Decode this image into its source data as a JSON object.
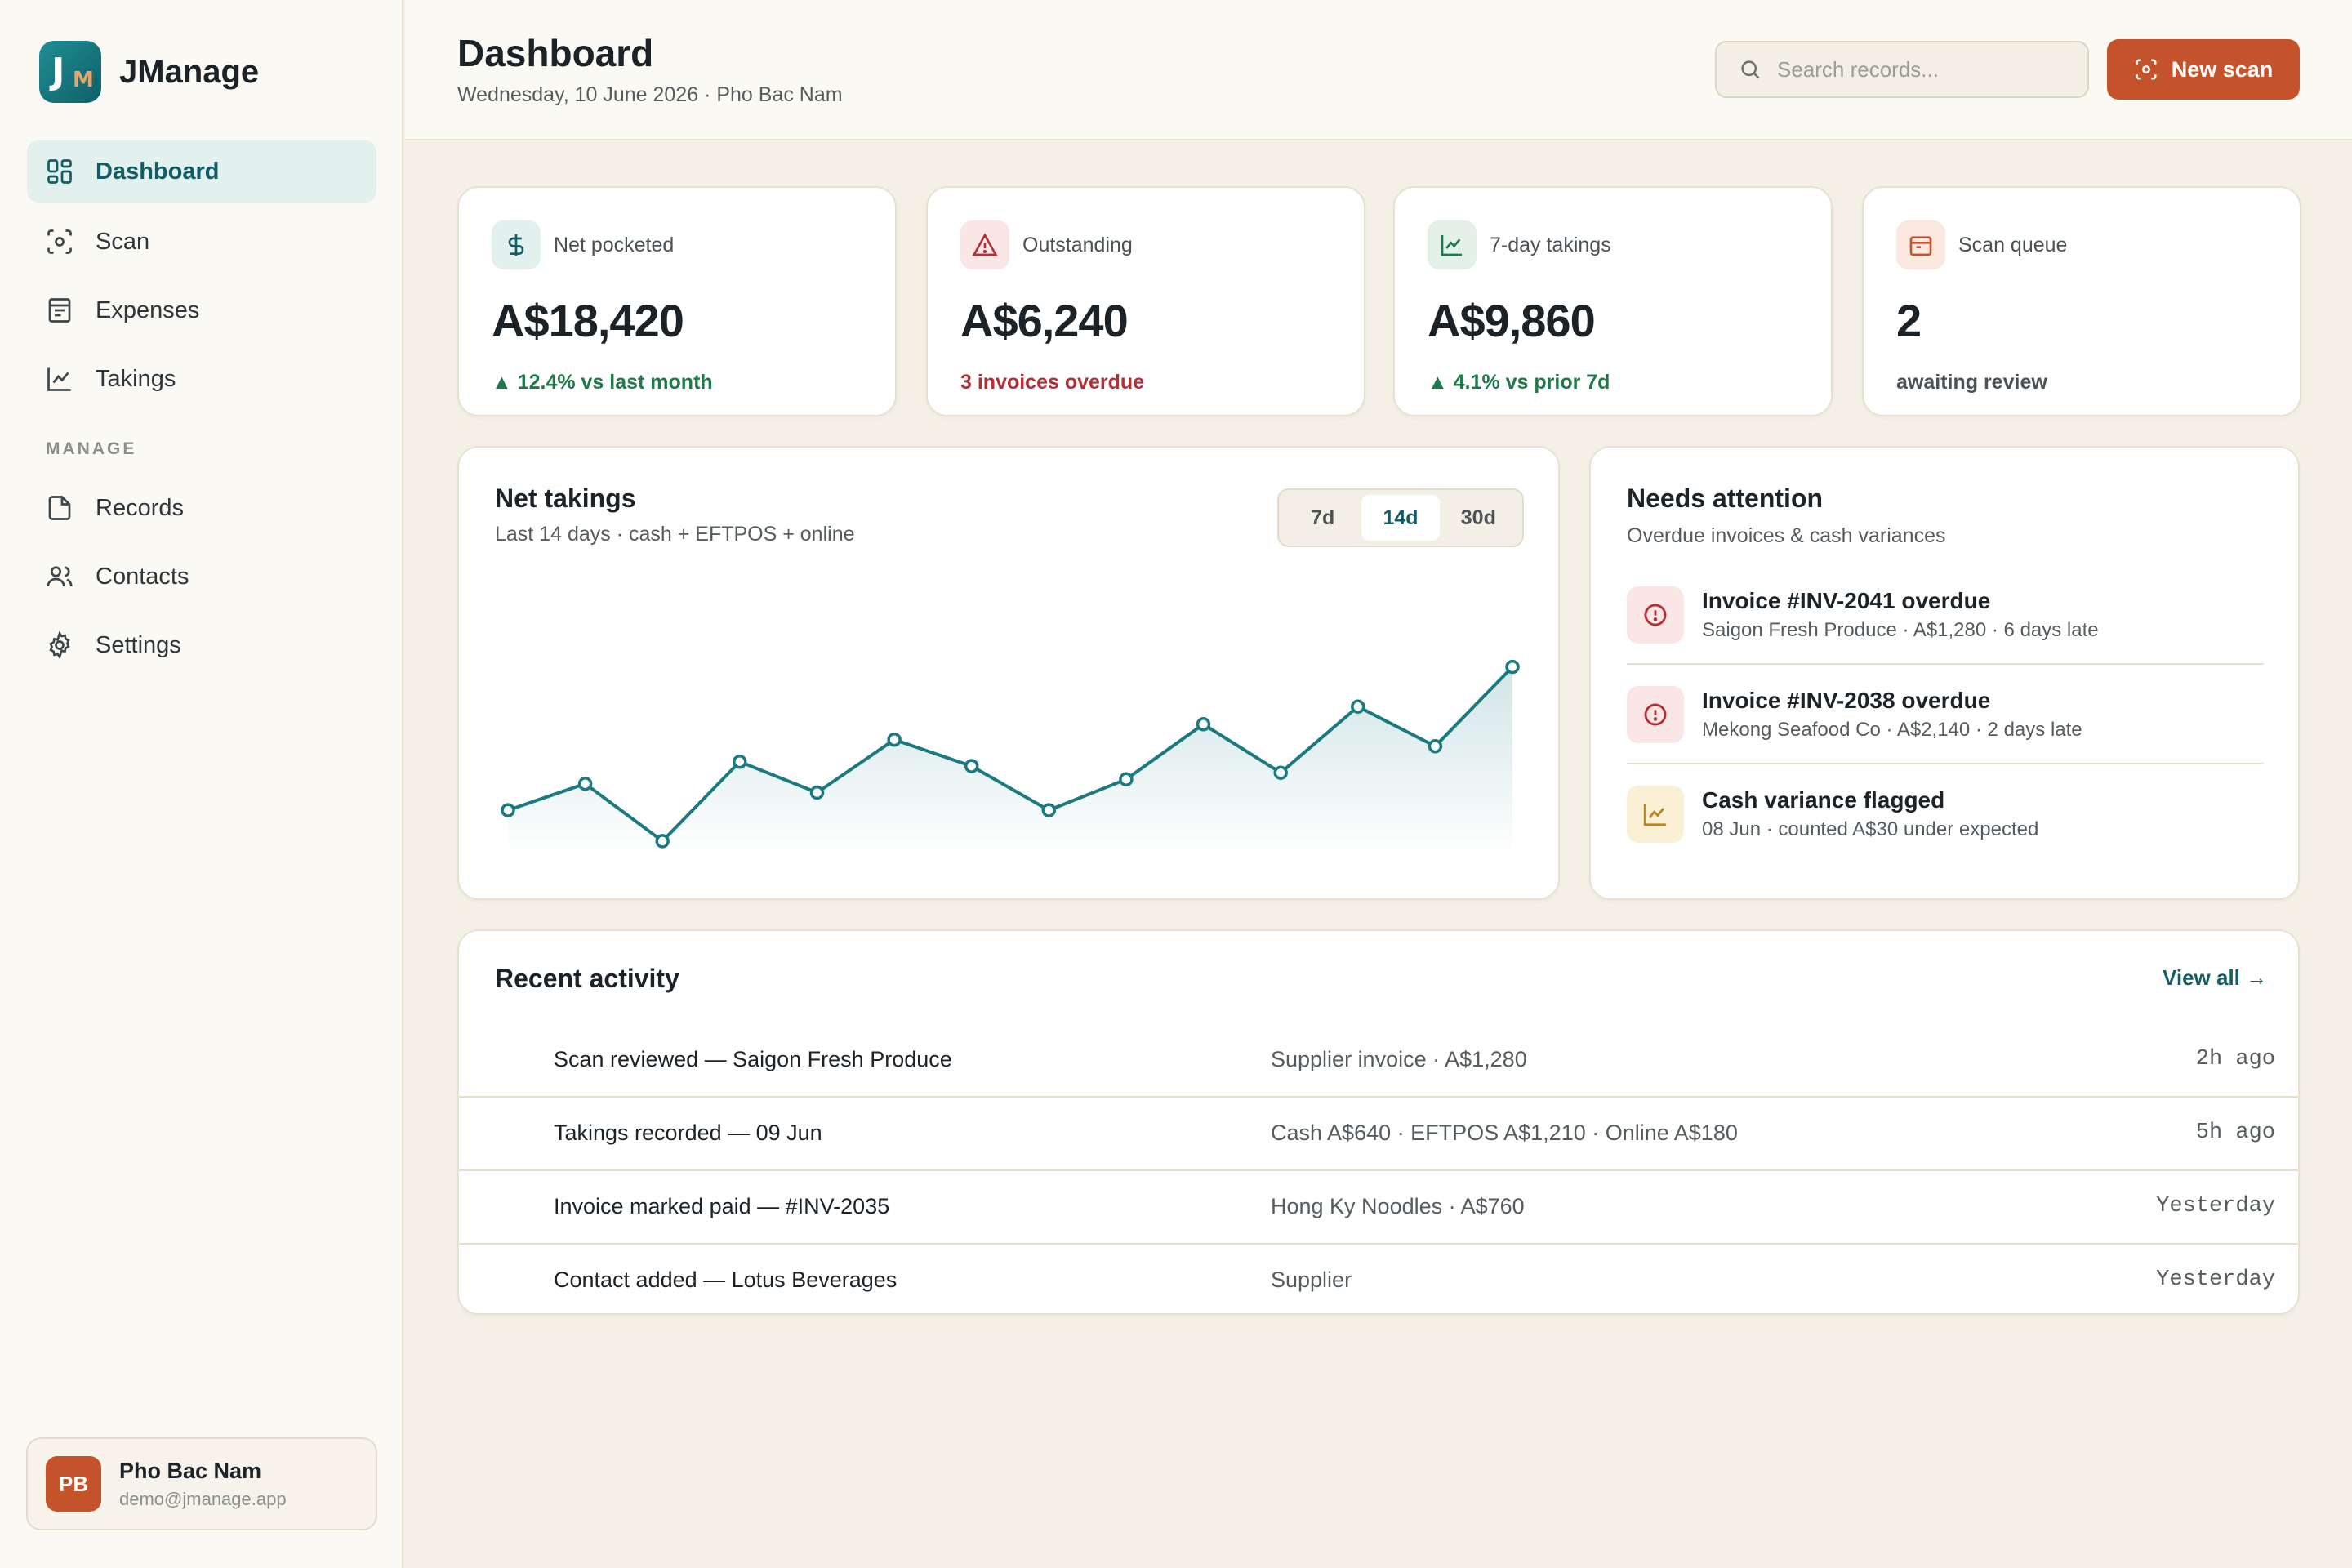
{
  "brand": {
    "logo_primary": "J",
    "logo_secondary": "M",
    "name": "JManage"
  },
  "sidebar": {
    "items": [
      {
        "label": "Dashboard",
        "icon": "grid-icon",
        "active": true
      },
      {
        "label": "Scan",
        "icon": "scan-icon"
      },
      {
        "label": "Expenses",
        "icon": "receipt-icon"
      },
      {
        "label": "Takings",
        "icon": "line-chart-icon"
      }
    ],
    "section_label": "MANAGE",
    "manage_items": [
      {
        "label": "Records",
        "icon": "file-icon"
      },
      {
        "label": "Contacts",
        "icon": "users-icon"
      },
      {
        "label": "Settings",
        "icon": "gear-icon"
      }
    ],
    "user": {
      "initials": "PB",
      "name": "Pho Bac Nam",
      "email": "demo@jmanage.app"
    }
  },
  "header": {
    "title": "Dashboard",
    "subtitle": "Wednesday, 10 June 2026 · Pho Bac Nam",
    "search_placeholder": "Search records...",
    "scan_button": "New scan"
  },
  "stats": [
    {
      "label": "Net pocketed",
      "value": "A$18,420",
      "note": "▲ 12.4% vs last month",
      "icon": "dollar-icon"
    },
    {
      "label": "Outstanding",
      "value": "A$6,240",
      "note": "3 invoices overdue",
      "icon": "warning-icon"
    },
    {
      "label": "7-day takings",
      "value": "A$9,860",
      "note": "▲ 4.1% vs prior 7d",
      "icon": "trend-icon"
    },
    {
      "label": "Scan queue",
      "value": "2",
      "note": "awaiting review",
      "icon": "calendar-icon"
    }
  ],
  "chart": {
    "title": "Net takings",
    "subtitle": "Last 14 days · cash + EFTPOS + online",
    "ranges": [
      "7d",
      "14d",
      "30d"
    ],
    "active_range": "14d"
  },
  "chart_data": {
    "type": "area",
    "x": [
      1,
      2,
      3,
      4,
      5,
      6,
      7,
      8,
      9,
      10,
      11,
      12,
      13,
      14
    ],
    "values": [
      0.17,
      0.29,
      0.03,
      0.39,
      0.25,
      0.49,
      0.37,
      0.17,
      0.31,
      0.56,
      0.34,
      0.64,
      0.46,
      0.82
    ],
    "grid": false,
    "legend": "none",
    "line_color": "#1a7a80"
  },
  "attention": {
    "title": "Needs attention",
    "subtitle": "Overdue invoices & cash variances",
    "items": [
      {
        "title": "Invoice #INV-2041 overdue",
        "sub": "Saigon Fresh Produce · A$1,280 · 6 days late",
        "icon": "alert-circle-icon"
      },
      {
        "title": "Invoice #INV-2038 overdue",
        "sub": "Mekong Seafood Co · A$2,140 · 2 days late",
        "icon": "alert-circle-icon"
      },
      {
        "title": "Cash variance flagged",
        "sub": "08 Jun · counted A$30 under expected",
        "icon": "chart-icon"
      }
    ]
  },
  "activity": {
    "title": "Recent activity",
    "view_all": "View all →",
    "rows": [
      {
        "title": "Scan reviewed — Saigon Fresh Produce",
        "detail": "Supplier invoice · A$1,280",
        "time": "2h ago"
      },
      {
        "title": "Takings recorded — 09 Jun",
        "detail": "Cash A$640 · EFTPOS A$1,210 · Online A$180",
        "time": "5h ago"
      },
      {
        "title": "Invoice marked paid — #INV-2035",
        "detail": "Hong Ky Noodles · A$760",
        "time": "Yesterday"
      },
      {
        "title": "Contact added — Lotus Beverages",
        "detail": "Supplier",
        "time": "Yesterday"
      }
    ]
  },
  "colors": {
    "accent": "#125d66",
    "brand_orange": "#c4522a",
    "positive": "#1f7a4a",
    "negative": "#b42e35"
  }
}
